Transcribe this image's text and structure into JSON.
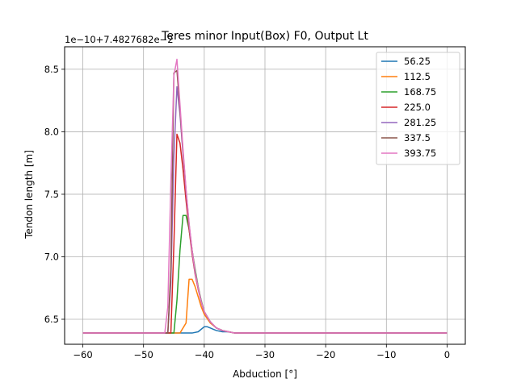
{
  "chart_data": {
    "type": "line",
    "title": "Teres minor Input(Box) F0, Output Lt",
    "xlabel": "Abduction [°]",
    "ylabel": "Tendon length [m]",
    "offset_text": "1e−10+7.4827682e−2",
    "xlim": [
      -63,
      3
    ],
    "ylim": [
      6.3,
      8.68
    ],
    "xticks": [
      -60,
      -50,
      -40,
      -30,
      -20,
      -10,
      0
    ],
    "xtick_labels": [
      "−60",
      "−50",
      "−40",
      "−30",
      "−20",
      "−10",
      "0"
    ],
    "yticks": [
      6.5,
      7.0,
      7.5,
      8.0,
      8.5
    ],
    "ytick_labels": [
      "6.5",
      "7.0",
      "7.5",
      "8.0",
      "8.5"
    ],
    "grid": true,
    "legend_position": "top-right",
    "series": [
      {
        "name": "56.25",
        "color": "#1f77b4",
        "x": [
          -60,
          -42,
          -41,
          -40.5,
          -40,
          -39.5,
          -39,
          -38.5,
          -38,
          -37,
          -36,
          -35,
          -34,
          0
        ],
        "y": [
          6.39,
          6.39,
          6.4,
          6.42,
          6.44,
          6.44,
          6.43,
          6.42,
          6.41,
          6.4,
          6.4,
          6.39,
          6.39,
          6.39
        ]
      },
      {
        "name": "112.5",
        "color": "#ff7f0e",
        "x": [
          -60,
          -44,
          -43,
          -42.5,
          -42,
          -41.5,
          -41,
          -40.5,
          -40,
          -39,
          -38,
          -37,
          -36,
          -35,
          -34,
          0
        ],
        "y": [
          6.39,
          6.39,
          6.47,
          6.82,
          6.82,
          6.76,
          6.68,
          6.6,
          6.54,
          6.47,
          6.43,
          6.41,
          6.4,
          6.39,
          6.39,
          6.39
        ]
      },
      {
        "name": "168.75",
        "color": "#2ca02c",
        "x": [
          -60,
          -45,
          -44.5,
          -44,
          -43.5,
          -43,
          -42.5,
          -42,
          -41.5,
          -41,
          -40.5,
          -40,
          -39,
          -38,
          -37,
          -36,
          -35,
          -34,
          0
        ],
        "y": [
          6.39,
          6.39,
          6.65,
          7.05,
          7.33,
          7.33,
          7.22,
          7.05,
          6.9,
          6.76,
          6.65,
          6.56,
          6.48,
          6.43,
          6.41,
          6.4,
          6.39,
          6.39,
          6.39
        ]
      },
      {
        "name": "225.0",
        "color": "#d62728",
        "x": [
          -60,
          -45.5,
          -45,
          -44.5,
          -44,
          -43.5,
          -43,
          -42.5,
          -42,
          -41.5,
          -41,
          -40.5,
          -40,
          -39,
          -38,
          -37,
          -36,
          -35,
          -34,
          0
        ],
        "y": [
          6.39,
          6.39,
          7.1,
          7.98,
          7.91,
          7.7,
          7.45,
          7.22,
          7.02,
          6.86,
          6.74,
          6.64,
          6.56,
          6.48,
          6.43,
          6.41,
          6.4,
          6.39,
          6.39,
          6.39
        ]
      },
      {
        "name": "281.25",
        "color": "#9467bd",
        "x": [
          -60,
          -46,
          -45.5,
          -45,
          -44.5,
          -44,
          -43.5,
          -43,
          -42.5,
          -42,
          -41.5,
          -41,
          -40.5,
          -40,
          -39,
          -38,
          -37,
          -36,
          -35,
          -34,
          0
        ],
        "y": [
          6.39,
          6.39,
          6.8,
          7.8,
          8.36,
          8.14,
          7.82,
          7.52,
          7.25,
          7.04,
          6.87,
          6.75,
          6.64,
          6.56,
          6.48,
          6.43,
          6.41,
          6.4,
          6.39,
          6.39,
          6.39
        ]
      },
      {
        "name": "337.5",
        "color": "#8c564b",
        "x": [
          -60,
          -46,
          -45.5,
          -45,
          -44.5,
          -44,
          -43.5,
          -43,
          -42.5,
          -42,
          -41.5,
          -41,
          -40.5,
          -40,
          -39,
          -38,
          -37,
          -36,
          -35,
          -34,
          0
        ],
        "y": [
          6.39,
          6.39,
          6.9,
          8.47,
          8.49,
          8.18,
          7.84,
          7.53,
          7.26,
          7.05,
          6.88,
          6.75,
          6.64,
          6.56,
          6.48,
          6.43,
          6.41,
          6.4,
          6.39,
          6.39,
          6.39
        ]
      },
      {
        "name": "393.75",
        "color": "#e377c2",
        "x": [
          -60,
          -46.5,
          -46,
          -45.5,
          -45,
          -44.5,
          -44,
          -43.5,
          -43,
          -42.5,
          -42,
          -41.5,
          -41,
          -40.5,
          -40,
          -39,
          -38,
          -37,
          -36,
          -35,
          -34,
          0
        ],
        "y": [
          6.39,
          6.39,
          6.6,
          7.6,
          8.45,
          8.58,
          8.22,
          7.86,
          7.54,
          7.27,
          7.05,
          6.88,
          6.75,
          6.64,
          6.56,
          6.48,
          6.43,
          6.41,
          6.4,
          6.39,
          6.39,
          6.39
        ]
      }
    ]
  }
}
